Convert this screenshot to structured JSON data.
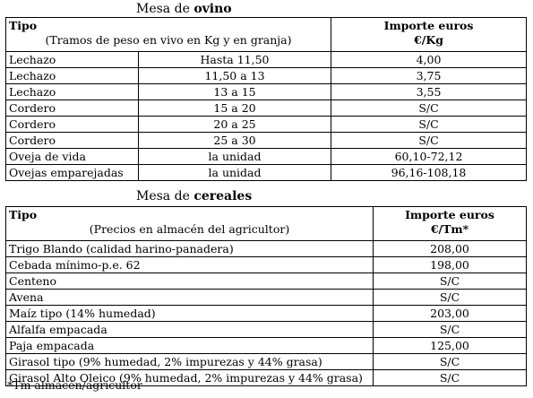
{
  "ovino": {
    "title_prefix": "Mesa de ",
    "title_bold": "ovino",
    "header": {
      "col1_title": "Tipo",
      "col1_sub": "(Tramos de peso en vivo en Kg y en granja)",
      "col3_line1": "Importe euros",
      "col3_line2": "€/Kg"
    },
    "rows": [
      {
        "tipo": "Lechazo",
        "tramo": "Hasta 11,50",
        "importe": "4,00"
      },
      {
        "tipo": "Lechazo",
        "tramo": "11,50 a 13",
        "importe": "3,75"
      },
      {
        "tipo": "Lechazo",
        "tramo": "13 a 15",
        "importe": "3,55"
      },
      {
        "tipo": "Cordero",
        "tramo": "15 a 20",
        "importe": "S/C"
      },
      {
        "tipo": "Cordero",
        "tramo": "20 a 25",
        "importe": "S/C"
      },
      {
        "tipo": "Cordero",
        "tramo": "25 a 30",
        "importe": "S/C"
      },
      {
        "tipo": "Oveja de vida",
        "tramo": "la unidad",
        "importe": "60,10-72,12"
      },
      {
        "tipo": "Ovejas emparejadas",
        "tramo": "la unidad",
        "importe": "96,16-108,18"
      }
    ]
  },
  "cereales": {
    "title_prefix": "Mesa de ",
    "title_bold": "cereales",
    "header": {
      "col1_title": "Tipo",
      "col1_sub": "(Precios en almacén del agricultor)",
      "col2_line1": "Importe euros",
      "col2_line2": "€/Tm*"
    },
    "rows": [
      {
        "tipo": "Trigo Blando (calidad harino-panadera)",
        "importe": "208,00"
      },
      {
        "tipo": "Cebada mínimo-p.e. 62",
        "importe": "198,00"
      },
      {
        "tipo": "Centeno",
        "importe": "S/C"
      },
      {
        "tipo": "Avena",
        "importe": "S/C"
      },
      {
        "tipo": "Maíz tipo (14% humedad)",
        "importe": "203,00"
      },
      {
        "tipo": "Alfalfa empacada",
        "importe": "S/C"
      },
      {
        "tipo": "Paja empacada",
        "importe": "125,00"
      },
      {
        "tipo": "Girasol tipo (9% humedad, 2% impurezas y 44% grasa)",
        "importe": "S/C"
      },
      {
        "tipo": "Girasol Alto Oleico (9% humedad, 2% impurezas y 44% grasa)",
        "importe": "S/C"
      }
    ]
  },
  "footnote": "*Tm almacén/agricultor"
}
